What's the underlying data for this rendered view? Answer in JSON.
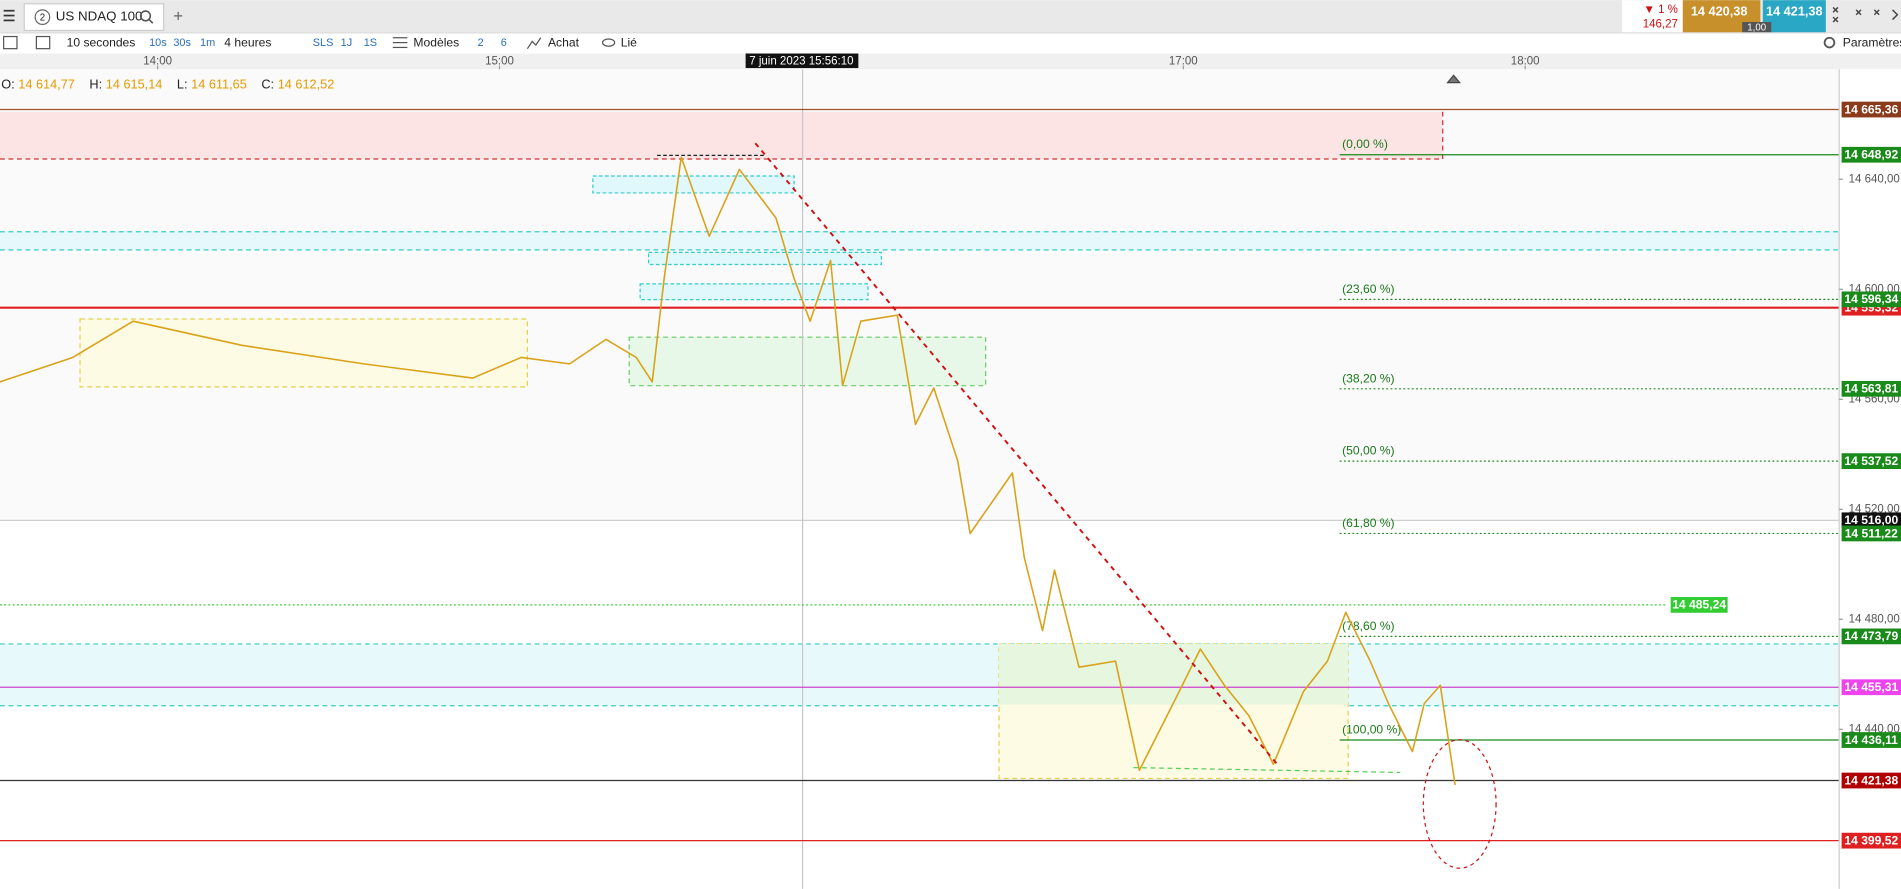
{
  "tab": {
    "badge": "2",
    "title": "US NDAQ 100"
  },
  "quote": {
    "change": "▼ 1 %",
    "change_points": "146,27",
    "bid": "14 420,38",
    "ask": "14 421,38",
    "spread": "1,00"
  },
  "toolbar": {
    "interval": "10 secondes",
    "interval_options": [
      "10s",
      "30s",
      "1m"
    ],
    "range": "4 heures",
    "range_options": [
      "SLS",
      "1J",
      "1S"
    ],
    "templates": "Modèles",
    "counts": [
      "2",
      "6"
    ],
    "order": "Achat",
    "link": "Lié",
    "settings": "Paramètres"
  },
  "ohlc": [
    {
      "label": "O:",
      "value": "14 614,77"
    },
    {
      "label": "H:",
      "value": "14 615,14"
    },
    {
      "label": "L:",
      "value": "14 611,65"
    },
    {
      "label": "C:",
      "value": "14 612,52"
    }
  ],
  "crosshair": {
    "time": "7 juin 2023 15:56:10"
  },
  "chart_data": {
    "type": "line",
    "color": "#d9a21b",
    "xlim": [
      812.34,
      1135.1
    ],
    "ylim": [
      14382,
      14680
    ],
    "xticks": [
      {
        "value": 840,
        "label": "14:00"
      },
      {
        "value": 900,
        "label": "15:00"
      },
      {
        "value": 1020,
        "label": "17:00"
      },
      {
        "value": 1080,
        "label": "18:00"
      }
    ],
    "yticks": [
      {
        "value": 14640,
        "label": "14 640,00"
      },
      {
        "value": 14600,
        "label": "14 600,00"
      },
      {
        "value": 14560,
        "label": "14 560,00"
      },
      {
        "value": 14520,
        "label": "14 520,00"
      },
      {
        "value": 14480,
        "label": "14 480,00"
      },
      {
        "value": 14440,
        "label": "14 440,00"
      }
    ],
    "x": [
      812.3,
      825.1,
      835.7,
      854.9,
      876.2,
      895.3,
      903.8,
      912.3,
      918.7,
      924.0,
      926.8,
      928.9,
      931.9,
      936.8,
      942.1,
      948.5,
      951.7,
      954.5,
      958.1,
      960.2,
      963.4,
      969.8,
      973.0,
      976.2,
      980.4,
      982.6,
      990.0,
      992.1,
      995.3,
      997.4,
      1001.7,
      1008.1,
      1012.3,
      1017.7,
      1023.0,
      1027.2,
      1031.5,
      1035.8,
      1041.1,
      1045.3,
      1048.5,
      1052.8,
      1056.0,
      1060.2,
      1062.3,
      1065.1,
      1067.7
    ],
    "values": [
      14566.3,
      14575.2,
      14588.4,
      14579.6,
      14572.9,
      14567.7,
      14575.2,
      14572.9,
      14581.8,
      14575.2,
      14566.3,
      14603.9,
      14648.0,
      14619.3,
      14643.6,
      14625.9,
      14603.9,
      14588.4,
      14610.5,
      14565.0,
      14588.4,
      14590.6,
      14550.9,
      14564.1,
      14537.7,
      14511.2,
      14533.2,
      14502.4,
      14475.9,
      14497.9,
      14462.6,
      14464.8,
      14425.1,
      14447.2,
      14469.2,
      14456.0,
      14445.0,
      14427.3,
      14453.8,
      14464.8,
      14482.5,
      14464.8,
      14449.4,
      14431.9,
      14449.4,
      14456.0,
      14419.8
    ]
  },
  "fib_levels": [
    {
      "label": "(0,00 %)",
      "value": 14648.92
    },
    {
      "label": "(23,60 %)",
      "value": 14596.34
    },
    {
      "label": "(38,20 %)",
      "value": 14563.81
    },
    {
      "label": "(50,00 %)",
      "value": 14537.52
    },
    {
      "label": "(61,80 %)",
      "value": 14511.22
    },
    {
      "label": "(78,60 %)",
      "value": 14473.79
    },
    {
      "label": "(100,00 %)",
      "value": 14436.11
    }
  ],
  "levels": [
    {
      "value": 14665.36,
      "label": "14 665,36",
      "color": "#a0522d",
      "label_bg": "#8b3a1a",
      "style": "solid"
    },
    {
      "value": 14648.92,
      "label": "14 648,92",
      "color": "#1a8a1a",
      "label_bg": "#1a8a1a",
      "style": "solid"
    },
    {
      "value": 14593.32,
      "label": "14 593,32",
      "color": "#e02020",
      "label_bg": "#e02020",
      "style": "solid"
    },
    {
      "value": 14596.34,
      "label": "14 596,34",
      "color": "#1a8a1a",
      "label_bg": "#1a8a1a",
      "style": "dotted"
    },
    {
      "value": 14563.81,
      "label": "14 563,81",
      "color": "#1a8a1a",
      "label_bg": "#1a8a1a",
      "style": "dotted"
    },
    {
      "value": 14537.52,
      "label": "14 537,52",
      "color": "#1a8a1a",
      "label_bg": "#1a8a1a",
      "style": "dotted"
    },
    {
      "value": 14516.0,
      "label": "14 516,00",
      "color": "#c8c8c8",
      "label_bg": "#111111",
      "style": "solid"
    },
    {
      "value": 14511.22,
      "label": "14 511,22",
      "color": "#1a8a1a",
      "label_bg": "#1a8a1a",
      "style": "dotted"
    },
    {
      "value": 14485.24,
      "label": "14 485,24",
      "color": "#33cc33",
      "label_bg": "#33cc33",
      "style": "dotted",
      "axis_label": false
    },
    {
      "value": 14473.79,
      "label": "14 473,79",
      "color": "#1a8a1a",
      "label_bg": "#1a8a1a",
      "style": "dotted"
    },
    {
      "value": 14455.31,
      "label": "14 455,31",
      "color": "#cc44cc",
      "label_bg": "#ee44ee",
      "style": "solid"
    },
    {
      "value": 14436.11,
      "label": "14 436,11",
      "color": "#1a8a1a",
      "label_bg": "#1a8a1a",
      "style": "solid"
    },
    {
      "value": 14421.38,
      "label": "14 421,38",
      "color": "#333333",
      "label_bg": "#b00000",
      "style": "solid"
    },
    {
      "value": 14399.52,
      "label": "14 399,52",
      "color": "#e02020",
      "label_bg": "#e02020",
      "style": "solid"
    }
  ]
}
